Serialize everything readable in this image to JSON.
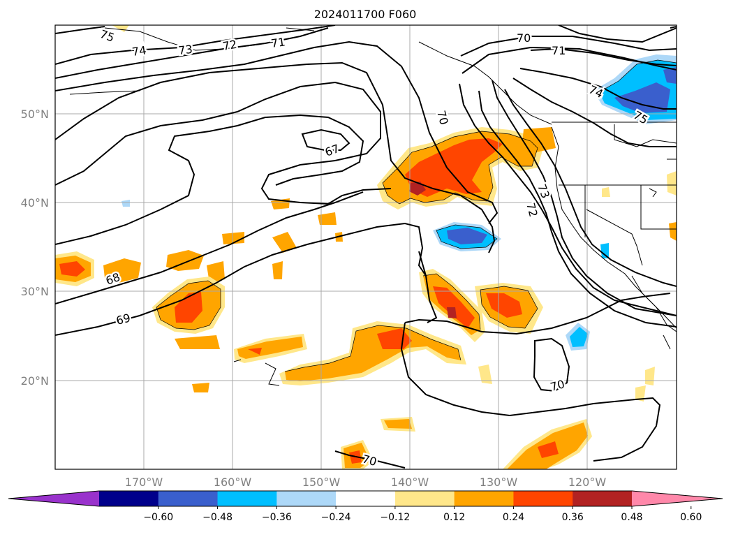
{
  "title": "2024011700 F060",
  "lat_labels": [
    "50°N",
    "40°N",
    "30°N",
    "20°N"
  ],
  "lon_labels": [
    "170°W",
    "160°W",
    "150°W",
    "140°W",
    "130°W",
    "120°W"
  ],
  "contour_labels": [
    "75",
    "74",
    "73",
    "72",
    "71",
    "70",
    "71",
    "74",
    "75",
    "70",
    "67",
    "73",
    "72",
    "68",
    "69",
    "70",
    "70"
  ],
  "colorbar": {
    "ticks": [
      "−0.60",
      "−0.48",
      "−0.36",
      "−0.24",
      "−0.12",
      "0.12",
      "0.24",
      "0.36",
      "0.48",
      "0.60"
    ],
    "colors": [
      "#9932cc",
      "#00008b",
      "#3a5fcd",
      "#00bfff",
      "#add8f8",
      "#ffffff",
      "#ffe78a",
      "#ffa500",
      "#ff4500",
      "#b22222",
      "#ff88aa"
    ]
  }
}
